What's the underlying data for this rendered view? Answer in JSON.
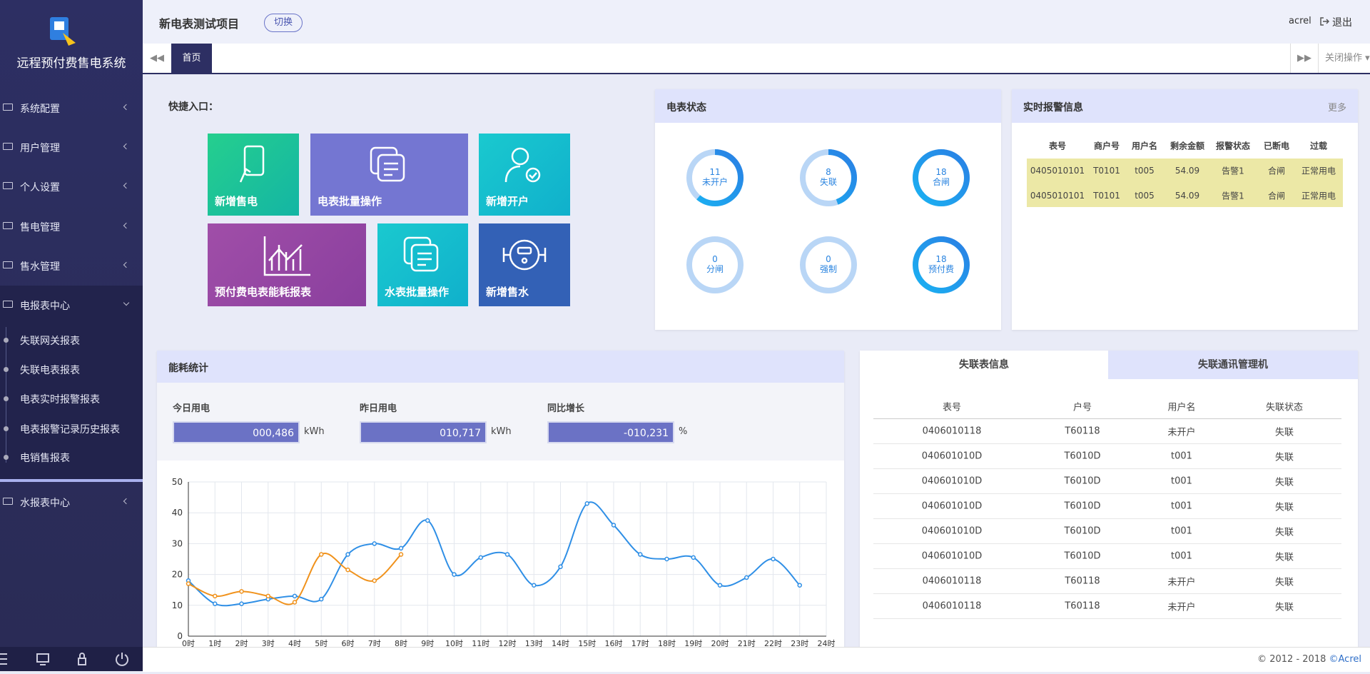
{
  "sidebar": {
    "title": "远程预付费售电系统",
    "menu": [
      "系统配置",
      "用户管理",
      "个人设置",
      "售电管理",
      "售水管理",
      "电报表中心",
      "水报表中心"
    ],
    "submenu": [
      "失联网关报表",
      "失联电表报表",
      "电表实时报警报表",
      "电表报警记录历史报表",
      "电销售报表"
    ]
  },
  "header": {
    "project": "新电表测试项目",
    "switch": "切换",
    "user": "acrel",
    "logout": "退出"
  },
  "tabs": {
    "home": "首页",
    "close": "关闭操作"
  },
  "shortcuts": {
    "title": "快捷入口：",
    "tiles": [
      "新增售电",
      "电表批量操作",
      "新增开户",
      "预付费电表能耗报表",
      "水表批量操作",
      "新增售水"
    ]
  },
  "meter_status": {
    "title": "电表状态",
    "items": [
      {
        "value": 11,
        "label": "未开户"
      },
      {
        "value": 8,
        "label": "失联"
      },
      {
        "value": 18,
        "label": "合闸"
      },
      {
        "value": 0,
        "label": "分闸"
      },
      {
        "value": 0,
        "label": "强制"
      },
      {
        "value": 18,
        "label": "预付费"
      }
    ]
  },
  "alarms": {
    "title": "实时报警信息",
    "more": "更多",
    "columns": [
      "表号",
      "商户号",
      "用户名",
      "剩余金额",
      "报警状态",
      "已断电",
      "过载"
    ],
    "rows": [
      [
        "0405010101",
        "T0101",
        "t005",
        "54.09",
        "告警1",
        "合闸",
        "正常用电"
      ],
      [
        "0405010101",
        "T0101",
        "t005",
        "54.09",
        "告警1",
        "合闸",
        "正常用电"
      ]
    ]
  },
  "energy": {
    "title": "能耗统计",
    "stats": [
      {
        "label": "今日用电",
        "value": "000,486",
        "unit": "kWh"
      },
      {
        "label": "昨日用电",
        "value": "010,717",
        "unit": "kWh"
      },
      {
        "label": "同比增长",
        "value": "-010,231",
        "unit": "%"
      }
    ]
  },
  "offline": {
    "tabs": [
      "失联表信息",
      "失联通讯管理机"
    ],
    "columns": [
      "表号",
      "户号",
      "用户名",
      "失联状态"
    ],
    "rows": [
      [
        "0406010118",
        "T60118",
        "未开户",
        "失联"
      ],
      [
        "040601010D",
        "T6010D",
        "t001",
        "失联"
      ],
      [
        "040601010D",
        "T6010D",
        "t001",
        "失联"
      ],
      [
        "040601010D",
        "T6010D",
        "t001",
        "失联"
      ],
      [
        "040601010D",
        "T6010D",
        "t001",
        "失联"
      ],
      [
        "040601010D",
        "T6010D",
        "t001",
        "失联"
      ],
      [
        "0406010118",
        "T60118",
        "未开户",
        "失联"
      ],
      [
        "0406010118",
        "T60118",
        "未开户",
        "失联"
      ]
    ]
  },
  "footer": {
    "copyright": "© 2012 - 2018",
    "link": "©Acrel"
  },
  "chart_data": {
    "type": "line",
    "categories": [
      "0时",
      "1时",
      "2时",
      "3时",
      "4时",
      "5时",
      "6时",
      "7时",
      "8时",
      "9时",
      "10时",
      "11时",
      "12时",
      "13时",
      "14时",
      "15时",
      "16时",
      "17时",
      "18时",
      "19时",
      "20时",
      "21时",
      "22时",
      "23时",
      "24时"
    ],
    "series": [
      {
        "color": "#2f8fe6",
        "values": [
          18,
          10.5,
          10.5,
          12,
          13,
          12,
          26.5,
          30,
          28.5,
          37.5,
          20,
          25.5,
          26.5,
          16.5,
          22.5,
          43,
          36,
          26.5,
          25,
          25.5,
          16.5,
          19,
          25,
          16.5,
          null
        ]
      },
      {
        "color": "#f0921c",
        "values": [
          17,
          13,
          14.5,
          13,
          11,
          26.5,
          21.5,
          18,
          26.5,
          null,
          null,
          null,
          null,
          null,
          null,
          null,
          null,
          null,
          null,
          null,
          null,
          null,
          null,
          null,
          null
        ]
      }
    ],
    "ylim": [
      0,
      50
    ],
    "yticks": [
      0,
      10,
      20,
      30,
      40,
      50
    ],
    "grid": true
  }
}
